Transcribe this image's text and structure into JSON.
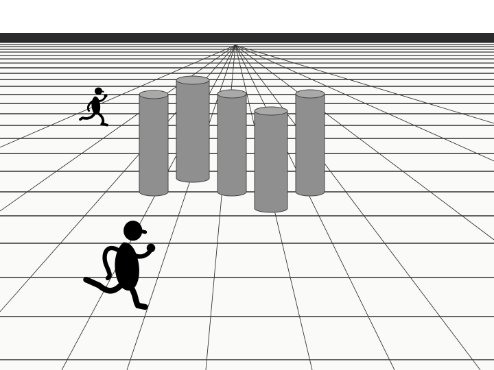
{
  "scene": {
    "background_color": "#ffffff",
    "floor_color": "#fafaf8",
    "horizon_bar_color": "#2b2b2b",
    "grid_line_color": "#333333",
    "cylinder_fill": "#8f8f8f",
    "cylinder_top": "#a9a9a9",
    "cylinder_outline": "#444444",
    "figure_color": "#000000",
    "cylinder_count": 5,
    "figure_count": 2,
    "icons": [
      "running-person-icon",
      "running-person-icon"
    ]
  }
}
